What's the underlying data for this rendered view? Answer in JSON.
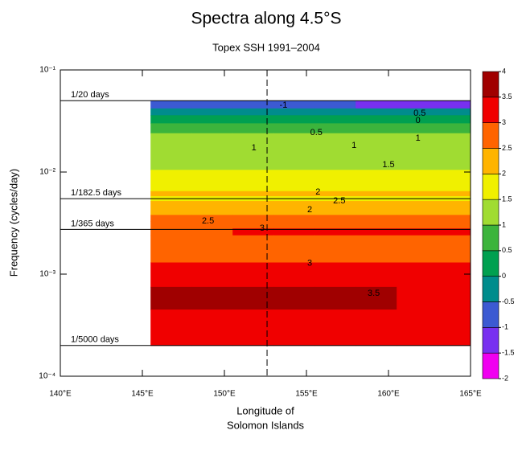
{
  "chart_data": {
    "type": "contour",
    "title": "Spectra along 4.5°S",
    "subtitle": "Topex SSH 1991–2004",
    "xlabel": [
      "Longitude of",
      "Solomon Islands"
    ],
    "ylabel": "Frequency (cycles/day)",
    "xlim": [
      140,
      165
    ],
    "xticks": [
      {
        "value": 140,
        "label": "140°E"
      },
      {
        "value": 145,
        "label": "145°E"
      },
      {
        "value": 150,
        "label": "150°E"
      },
      {
        "value": 155,
        "label": "155°E"
      },
      {
        "value": 160,
        "label": "160°E"
      },
      {
        "value": 165,
        "label": "165°E"
      }
    ],
    "ylim": [
      0.0001,
      0.1
    ],
    "log_y": true,
    "yticks": [
      {
        "value": 0.0001,
        "label": "10⁻⁴"
      },
      {
        "value": 0.001,
        "label": "10⁻³"
      },
      {
        "value": 0.01,
        "label": "10⁻²"
      },
      {
        "value": 0.1,
        "label": "10⁻¹"
      }
    ],
    "x": [
      145.5,
      148,
      150.5,
      153,
      155.5,
      158,
      160.5,
      163
    ],
    "freq_edges": [
      0.05,
      0.042,
      0.036,
      0.03,
      0.024,
      0.0105,
      0.0065,
      0.0058,
      0.0052,
      0.0038,
      0.0033,
      0.0028,
      0.0024,
      0.0013,
      0.00075,
      0.00045,
      0.0002
    ],
    "z": [
      [
        -0.75,
        -0.75,
        -0.75,
        -0.75,
        -0.75,
        -1.25,
        -1.25,
        -1.25
      ],
      [
        -0.25,
        -0.25,
        -0.25,
        -0.25,
        -0.25,
        -0.25,
        -0.25,
        -0.25
      ],
      [
        0.25,
        0.25,
        0.25,
        0.25,
        0.25,
        0.25,
        0.25,
        0.25
      ],
      [
        0.75,
        0.75,
        0.75,
        0.75,
        0.75,
        0.75,
        0.75,
        0.75
      ],
      [
        1.25,
        1.25,
        1.25,
        1.25,
        1.25,
        1.25,
        1.25,
        1.25
      ],
      [
        1.75,
        1.75,
        1.75,
        1.75,
        1.75,
        1.75,
        1.75,
        1.75
      ],
      [
        2.25,
        2.25,
        2.25,
        2.25,
        2.25,
        2.25,
        2.25,
        2.25
      ],
      [
        1.75,
        1.75,
        1.75,
        1.75,
        1.75,
        1.75,
        1.75,
        1.75
      ],
      [
        2.25,
        2.25,
        2.25,
        2.25,
        2.25,
        2.25,
        2.25,
        2.25
      ],
      [
        2.75,
        2.75,
        2.75,
        2.75,
        2.75,
        2.75,
        2.75,
        2.75
      ],
      [
        2.75,
        2.75,
        2.75,
        2.75,
        2.75,
        2.75,
        2.75,
        2.75
      ],
      [
        2.75,
        2.75,
        3.25,
        3.25,
        3.25,
        3.25,
        3.25,
        3.25
      ],
      [
        2.75,
        2.75,
        2.75,
        2.75,
        2.75,
        2.75,
        2.75,
        2.75
      ],
      [
        3.25,
        3.25,
        3.25,
        3.25,
        3.25,
        3.25,
        3.25,
        3.25
      ],
      [
        3.75,
        3.75,
        3.75,
        3.75,
        3.75,
        3.75,
        3.25,
        3.25
      ],
      [
        3.25,
        3.25,
        3.25,
        3.25,
        3.25,
        3.25,
        3.25,
        3.25
      ]
    ],
    "contour_labels": [
      {
        "text": "-1",
        "x": 153.6,
        "y": 0.045
      },
      {
        "text": "0.5",
        "x": 161.9,
        "y": 0.0376
      },
      {
        "text": "0",
        "x": 161.8,
        "y": 0.0319
      },
      {
        "text": "0.5",
        "x": 155.6,
        "y": 0.0243
      },
      {
        "text": "1",
        "x": 151.8,
        "y": 0.0172
      },
      {
        "text": "1",
        "x": 157.9,
        "y": 0.0182
      },
      {
        "text": "1",
        "x": 161.8,
        "y": 0.0213
      },
      {
        "text": "1.5",
        "x": 160,
        "y": 0.0118
      },
      {
        "text": "2",
        "x": 155.7,
        "y": 0.00636
      },
      {
        "text": "2.5",
        "x": 157,
        "y": 0.0052
      },
      {
        "text": "2",
        "x": 155.2,
        "y": 0.00427
      },
      {
        "text": "2.5",
        "x": 149,
        "y": 0.0033
      },
      {
        "text": "3",
        "x": 152.3,
        "y": 0.00281
      },
      {
        "text": "3",
        "x": 155.2,
        "y": 0.00127
      },
      {
        "text": "3.5",
        "x": 159.1,
        "y": 0.000646
      }
    ],
    "period_lines": [
      {
        "label": "1/20 days",
        "value": 0.05
      },
      {
        "label": "1/182.5 days",
        "value": 0.005479
      },
      {
        "label": "1/365 days",
        "value": 0.00274
      },
      {
        "label": "1/5000 days",
        "value": 0.0002
      }
    ],
    "marker_x": 152.6,
    "colorbar": {
      "levels": [
        -2,
        -1.5,
        -1,
        -0.5,
        0,
        0.5,
        1,
        1.5,
        2,
        2.5,
        3,
        3.5,
        4
      ],
      "colors": [
        "#f000f0",
        "#7830f0",
        "#3c5ad2",
        "#008c8c",
        "#00a050",
        "#3cb43c",
        "#a0dc32",
        "#f0f000",
        "#ffb400",
        "#ff6400",
        "#f00000",
        "#a00000"
      ]
    }
  }
}
